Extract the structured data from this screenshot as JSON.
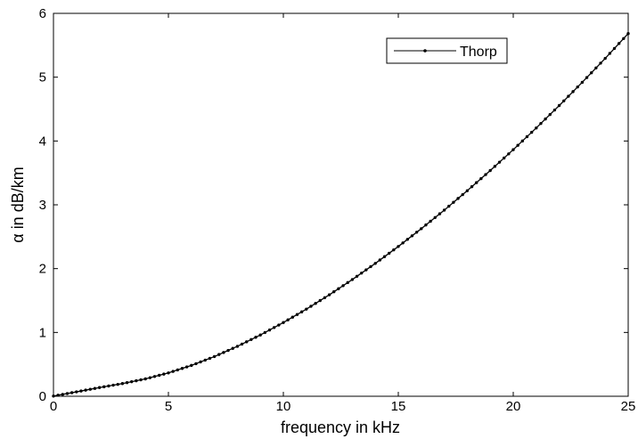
{
  "chart_data": {
    "type": "line",
    "xlabel": "frequency in kHz",
    "ylabel": "α in dB/km",
    "xlim": [
      0,
      25
    ],
    "ylim": [
      0,
      6
    ],
    "xticks": [
      0,
      5,
      10,
      15,
      20,
      25
    ],
    "yticks": [
      0,
      1,
      2,
      3,
      4,
      5,
      6
    ],
    "grid": false,
    "legend_position": "top-right",
    "line_color": "#000000",
    "marker": "dot",
    "series": [
      {
        "name": "Thorp",
        "x": [
          0,
          1,
          2,
          3,
          4,
          5,
          6,
          7,
          8,
          9,
          10,
          11,
          12,
          13,
          14,
          15,
          16,
          17,
          18,
          19,
          20,
          21,
          22,
          23,
          24,
          25
        ],
        "values": [
          0.003,
          0.069,
          0.136,
          0.199,
          0.272,
          0.366,
          0.483,
          0.622,
          0.782,
          0.96,
          1.155,
          1.365,
          1.59,
          1.829,
          2.082,
          2.347,
          2.626,
          2.917,
          3.221,
          3.537,
          3.864,
          4.204,
          4.556,
          4.919,
          5.295,
          5.683
        ]
      }
    ]
  }
}
